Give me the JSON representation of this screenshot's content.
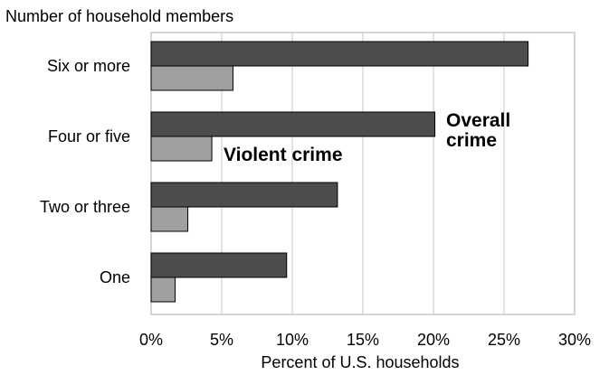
{
  "chart_data": {
    "type": "bar",
    "orientation": "horizontal",
    "title": "Number of household members",
    "xlabel": "Percent of U.S. households",
    "ylabel": "",
    "categories": [
      "Six or more",
      "Four or five",
      "Two or three",
      "One"
    ],
    "series": [
      {
        "name": "Overall crime",
        "values": [
          26.7,
          20.1,
          13.2,
          9.6
        ],
        "color": "#4d4d4d"
      },
      {
        "name": "Violent crime",
        "values": [
          5.8,
          4.3,
          2.6,
          1.7
        ],
        "color": "#a0a0a0"
      }
    ],
    "xlim": [
      0,
      30
    ],
    "xticks": [
      "0%",
      "5%",
      "10%",
      "15%",
      "20%",
      "25%",
      "30%"
    ],
    "grid": true,
    "annotations": {
      "overall_line1": "Overall",
      "overall_line2": "crime",
      "violent": "Violent crime"
    }
  }
}
